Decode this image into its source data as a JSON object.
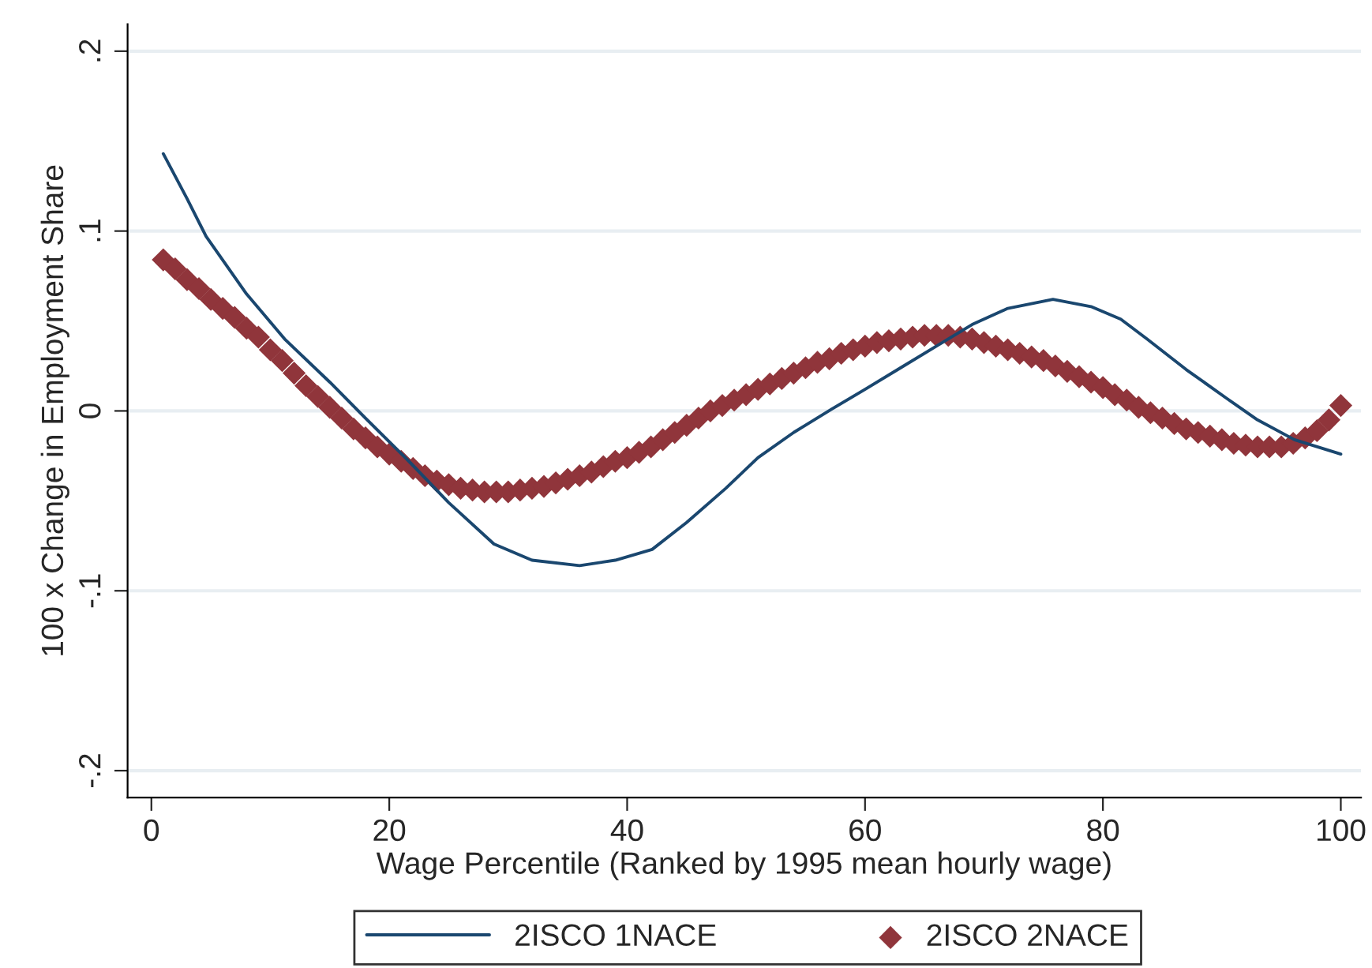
{
  "chart_data": {
    "type": "line",
    "xlabel": "Wage Percentile (Ranked by 1995 mean hourly wage)",
    "ylabel": "100 x Change in Employment Share",
    "xlim": [
      -2,
      101.7
    ],
    "xticks": [
      0,
      20,
      40,
      60,
      80,
      100
    ],
    "ylim": [
      -0.215,
      0.215
    ],
    "yticks": [
      {
        "value": -0.2,
        "label": "-.2"
      },
      {
        "value": -0.1,
        "label": "-.1"
      },
      0,
      {
        "value": 0.1,
        "label": ".1"
      },
      {
        "value": 0.2,
        "label": ".2"
      }
    ],
    "grid": "y",
    "legend": "bottom",
    "series": [
      {
        "name": "2ISCO 1NACE",
        "type": "line",
        "color": "#1a476f",
        "line_style": "solid",
        "x": [
          1,
          3,
          4.6,
          8,
          11.2,
          15,
          18,
          21.8,
          25,
          28.8,
          32,
          36,
          39,
          42.1,
          45,
          48.3,
          51,
          54,
          57.2,
          60,
          63,
          66,
          69,
          72,
          75.8,
          79,
          81.5,
          83.7,
          87,
          90.4,
          93,
          96.1,
          100
        ],
        "values": [
          0.143,
          0.118,
          0.097,
          0.065,
          0.04,
          0.016,
          -0.004,
          -0.029,
          -0.051,
          -0.074,
          -0.083,
          -0.086,
          -0.083,
          -0.077,
          -0.062,
          -0.043,
          -0.026,
          -0.012,
          0.001,
          0.012,
          0.024,
          0.036,
          0.048,
          0.057,
          0.062,
          0.058,
          0.051,
          0.04,
          0.023,
          0.007,
          -0.005,
          -0.016,
          -0.024
        ]
      },
      {
        "name": "2ISCO 2NACE",
        "type": "scatter",
        "marker": "diamond",
        "color": "#90353b",
        "x": [
          1,
          2,
          3,
          4,
          5,
          6,
          7,
          8,
          9,
          10,
          11,
          12,
          13,
          14,
          15,
          16,
          17,
          18,
          19,
          20,
          21,
          22,
          23,
          24,
          25,
          26,
          27,
          28,
          29,
          30,
          31,
          32,
          33,
          34,
          35,
          36,
          37,
          38,
          39,
          40,
          41,
          42,
          43,
          44,
          45,
          46,
          47,
          48,
          49,
          50,
          51,
          52,
          53,
          54,
          55,
          56,
          57,
          58,
          59,
          60,
          61,
          62,
          63,
          64,
          65,
          66,
          67,
          68,
          69,
          70,
          71,
          72,
          73,
          74,
          75,
          76,
          77,
          78,
          79,
          80,
          81,
          82,
          83,
          84,
          85,
          86,
          87,
          88,
          89,
          90,
          91,
          92,
          93,
          94,
          95,
          96,
          97,
          98,
          99,
          100
        ],
        "values": [
          0.084,
          0.079,
          0.073,
          0.068,
          0.062,
          0.057,
          0.052,
          0.046,
          0.041,
          0.034,
          0.028,
          0.021,
          0.014,
          0.008,
          0.002,
          -0.004,
          -0.01,
          -0.015,
          -0.02,
          -0.024,
          -0.028,
          -0.032,
          -0.036,
          -0.039,
          -0.041,
          -0.043,
          -0.044,
          -0.045,
          -0.045,
          -0.045,
          -0.044,
          -0.043,
          -0.042,
          -0.04,
          -0.038,
          -0.036,
          -0.034,
          -0.031,
          -0.028,
          -0.026,
          -0.023,
          -0.02,
          -0.016,
          -0.012,
          -0.008,
          -0.004,
          0.0,
          0.003,
          0.006,
          0.009,
          0.012,
          0.015,
          0.018,
          0.021,
          0.024,
          0.027,
          0.029,
          0.032,
          0.034,
          0.036,
          0.038,
          0.039,
          0.04,
          0.041,
          0.042,
          0.042,
          0.042,
          0.041,
          0.04,
          0.038,
          0.036,
          0.034,
          0.032,
          0.03,
          0.028,
          0.025,
          0.022,
          0.019,
          0.016,
          0.013,
          0.009,
          0.006,
          0.002,
          -0.001,
          -0.004,
          -0.007,
          -0.01,
          -0.012,
          -0.014,
          -0.016,
          -0.018,
          -0.019,
          -0.02,
          -0.02,
          -0.02,
          -0.018,
          -0.015,
          -0.011,
          -0.005,
          0.003
        ]
      }
    ]
  }
}
